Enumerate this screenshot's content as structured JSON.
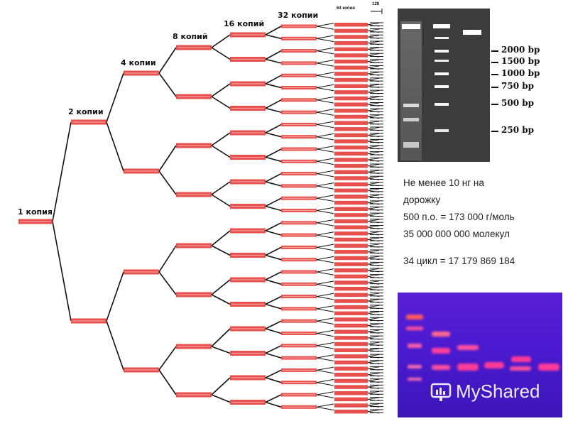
{
  "levels": [
    {
      "label": "1 копия"
    },
    {
      "label": "2 копии"
    },
    {
      "label": "4 копии"
    },
    {
      "label": "8 копий"
    },
    {
      "label": "16 копий"
    },
    {
      "label": "32 копии"
    },
    {
      "label": "64 копии"
    }
  ],
  "extra_label": "128",
  "gel_top": {
    "ladder_labels": [
      "2000 bp",
      "1500 bp",
      "1000 bp",
      "750 bp",
      "500 bp",
      "250 bp"
    ]
  },
  "info": {
    "line1": "Не менее 10 нг на",
    "line2": "дорожку",
    "line3": "500 п.о. = 173 000 г/моль",
    "line4": "35 000 000 000 молекул",
    "line5": "34 цикл = 17 179 869 184"
  },
  "watermark": {
    "text": "MyShared",
    "icon": "myshared-logo-icon"
  },
  "colors": {
    "band_red": "#e8504e",
    "band_pale": "#f2a3a1",
    "gel_dark": "#3c3c3c",
    "gel_uv": "#5020d0",
    "uv_band": "#ff4f9e"
  }
}
